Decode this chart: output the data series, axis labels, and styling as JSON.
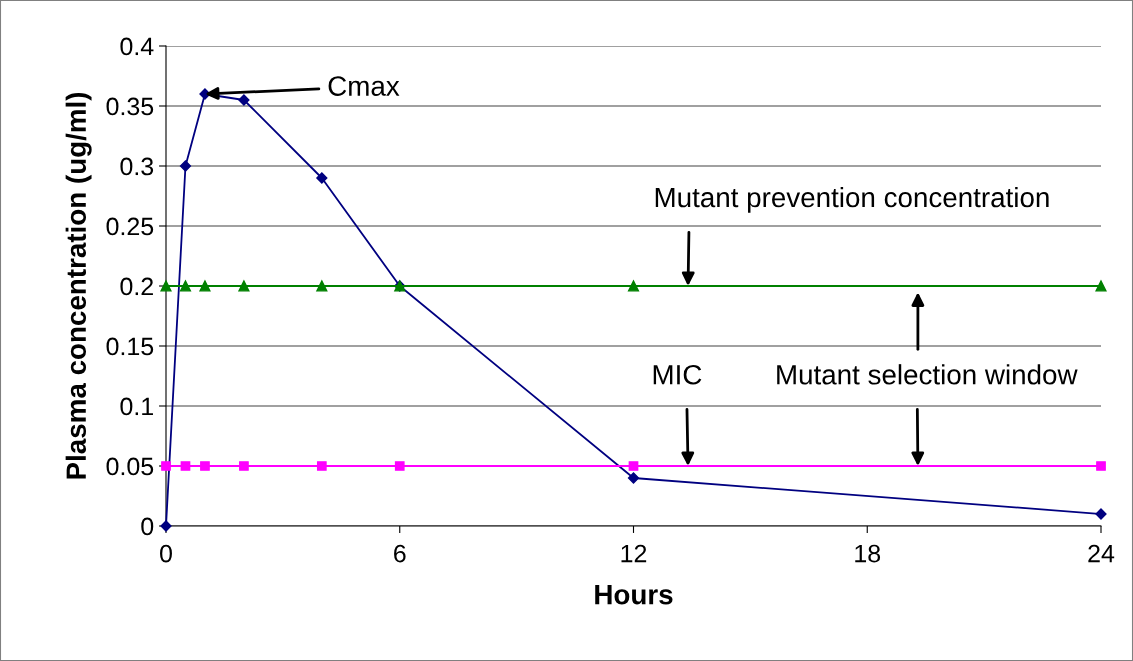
{
  "chart_data": {
    "type": "line",
    "xlabel": "Hours",
    "ylabel": "Plasma concentration (ug/ml)",
    "x": [
      0,
      0.5,
      1,
      2,
      4,
      6,
      12,
      24
    ],
    "series": [
      {
        "color": "#000080",
        "marker": "diamond",
        "values": [
          0,
          0.3,
          0.36,
          0.355,
          0.29,
          0.2,
          0.04,
          0.01
        ]
      },
      {
        "color": "#008000",
        "marker": "triangle",
        "values": [
          0.2,
          0.2,
          0.2,
          0.2,
          0.2,
          0.2,
          0.2,
          0.2
        ]
      },
      {
        "color": "#ff00ff",
        "marker": "square",
        "values": [
          0.05,
          0.05,
          0.05,
          0.05,
          0.05,
          0.05,
          0.05,
          0.05
        ]
      }
    ],
    "annotations": [
      {
        "text": "Cmax",
        "x": 1,
        "y": 0.36
      },
      {
        "text": "Mutant prevention concentration",
        "x": 13.4,
        "y": 0.2
      },
      {
        "text": "MIC",
        "x": 13.4,
        "y": 0.05
      },
      {
        "text": "Mutant selection window",
        "x": 19.3,
        "y": 0.05
      }
    ],
    "xlim": [
      0,
      24
    ],
    "xticks": [
      0,
      6,
      12,
      18,
      24
    ],
    "ylim": [
      0,
      0.4
    ],
    "yticks": [
      0,
      0.05,
      0.1,
      0.15,
      0.2,
      0.25,
      0.3,
      0.35,
      0.4
    ],
    "grid": "y",
    "legend": false
  }
}
